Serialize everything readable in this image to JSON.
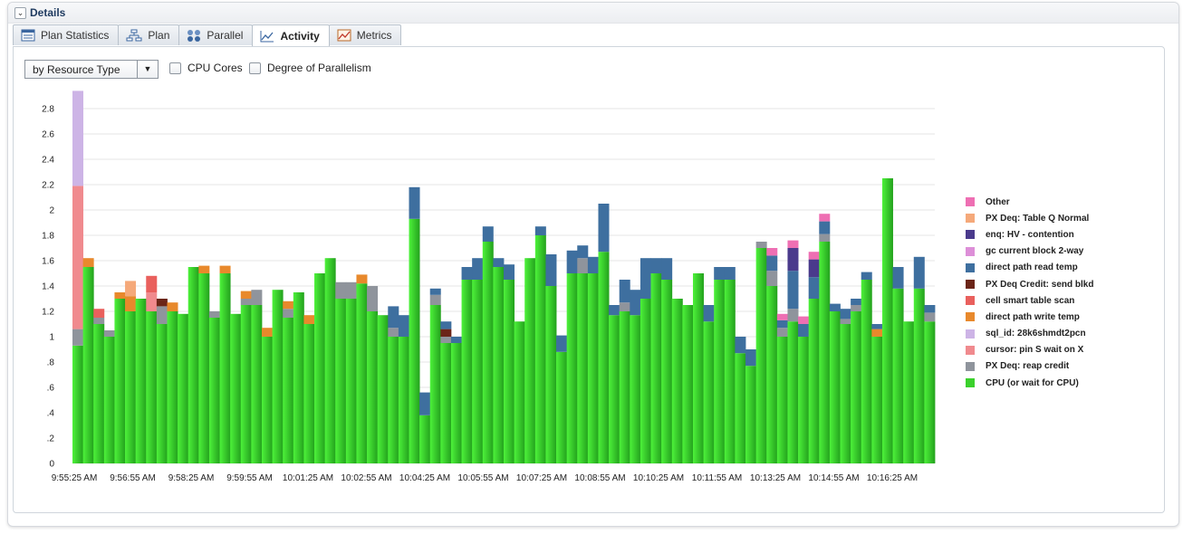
{
  "header": {
    "title": "Details"
  },
  "tabs": [
    {
      "label": "Plan Statistics",
      "icon": "table-icon"
    },
    {
      "label": "Plan",
      "icon": "plan-tree-icon"
    },
    {
      "label": "Parallel",
      "icon": "parallel-servers-icon"
    },
    {
      "label": "Activity",
      "icon": "activity-chart-icon",
      "active": true
    },
    {
      "label": "Metrics",
      "icon": "metrics-chart-icon"
    }
  ],
  "controls": {
    "dimension_select": "by Resource Type",
    "cpu_cores_label": "CPU Cores",
    "dop_label": "Degree of Parallelism"
  },
  "chart_data": {
    "type": "bar",
    "stacked": true,
    "ylim": [
      0,
      3
    ],
    "y_ticks": [
      "0",
      ".2",
      ".4",
      ".6",
      ".8",
      "1",
      "1.2",
      "1.4",
      "1.6",
      "1.8",
      "2",
      "2.2",
      "2.4",
      "2.6",
      "2.8"
    ],
    "x_ticks": [
      "9:55:25 AM",
      "9:56:55 AM",
      "9:58:25 AM",
      "9:59:55 AM",
      "10:01:25 AM",
      "10:02:55 AM",
      "10:04:25 AM",
      "10:05:55 AM",
      "10:07:25 AM",
      "10:08:55 AM",
      "10:10:25 AM",
      "10:11:55 AM",
      "10:13:25 AM",
      "10:14:55 AM",
      "10:16:25 AM"
    ],
    "grid": true,
    "legend_position": "right",
    "series": [
      {
        "name": "CPU (or wait for CPU)",
        "color": "#3bd12c",
        "values": [
          0.93,
          1.55,
          1.1,
          1.0,
          1.3,
          1.2,
          1.3,
          1.2,
          1.1,
          1.2,
          1.18,
          1.55,
          1.5,
          1.15,
          1.5,
          1.18,
          1.25,
          1.25,
          1.0,
          1.37,
          1.15,
          1.35,
          1.1,
          1.5,
          1.62,
          1.3,
          1.3,
          1.42,
          1.2,
          1.17,
          1.0,
          1.0,
          1.93,
          0.38,
          1.25,
          0.95,
          0.95,
          1.45,
          1.45,
          1.75,
          1.55,
          1.45,
          1.12,
          1.62,
          1.8,
          1.4,
          0.88,
          1.5,
          1.5,
          1.5,
          1.67,
          1.17,
          1.2,
          1.17,
          1.3,
          1.5,
          1.45,
          1.3,
          1.25,
          1.5,
          1.12,
          1.45,
          1.45,
          0.87,
          0.77,
          1.7,
          1.4,
          1.0,
          1.12,
          1.0,
          1.3,
          1.75,
          1.2,
          1.1,
          1.2,
          1.45,
          1.0,
          2.25,
          1.38,
          1.12,
          1.38,
          1.12
        ]
      },
      {
        "name": "PX Deq: reap credit",
        "color": "#8f949c",
        "values": [
          0.13,
          0,
          0.05,
          0.05,
          0,
          0,
          0,
          0,
          0.14,
          0,
          0,
          0,
          0,
          0.05,
          0,
          0,
          0.05,
          0.12,
          0,
          0,
          0.07,
          0,
          0,
          0,
          0,
          0.13,
          0.13,
          0,
          0.2,
          0,
          0.07,
          0,
          0,
          0,
          0.08,
          0.05,
          0,
          0,
          0,
          0,
          0,
          0,
          0,
          0,
          0,
          0,
          0,
          0,
          0.12,
          0,
          0,
          0,
          0.07,
          0,
          0,
          0,
          0,
          0,
          0,
          0,
          0,
          0,
          0,
          0,
          0,
          0.05,
          0.12,
          0.07,
          0.1,
          0,
          0,
          0.06,
          0,
          0.04,
          0.05,
          0,
          0,
          0,
          0,
          0,
          0,
          0.07
        ]
      },
      {
        "name": "cursor: pin S wait on X",
        "color": "#f08a8e",
        "values": [
          1.13,
          0,
          0,
          0,
          0,
          0,
          0,
          0.15,
          0,
          0,
          0,
          0,
          0,
          0,
          0,
          0,
          0,
          0,
          0,
          0,
          0,
          0,
          0,
          0,
          0,
          0,
          0,
          0,
          0,
          0,
          0,
          0,
          0,
          0,
          0,
          0,
          0,
          0,
          0,
          0,
          0,
          0,
          0,
          0,
          0,
          0,
          0,
          0,
          0,
          0,
          0,
          0,
          0,
          0,
          0,
          0,
          0,
          0,
          0,
          0,
          0,
          0,
          0,
          0,
          0,
          0,
          0,
          0,
          0,
          0,
          0,
          0,
          0,
          0,
          0,
          0,
          0,
          0,
          0,
          0,
          0,
          0
        ]
      },
      {
        "name": "sql_id: 28k6shmdt2pcn",
        "color": "#cdb4e6",
        "values": [
          0.75,
          0,
          0,
          0,
          0,
          0,
          0,
          0,
          0,
          0,
          0,
          0,
          0,
          0,
          0,
          0,
          0,
          0,
          0,
          0,
          0,
          0,
          0,
          0,
          0,
          0,
          0,
          0,
          0,
          0,
          0,
          0,
          0,
          0,
          0,
          0,
          0,
          0,
          0,
          0,
          0,
          0,
          0,
          0,
          0,
          0,
          0,
          0,
          0,
          0,
          0,
          0,
          0,
          0,
          0,
          0,
          0,
          0,
          0,
          0,
          0,
          0,
          0,
          0,
          0,
          0,
          0,
          0,
          0,
          0,
          0,
          0,
          0,
          0,
          0,
          0,
          0,
          0,
          0,
          0,
          0,
          0
        ]
      },
      {
        "name": "direct path write temp",
        "color": "#e8892c",
        "values": [
          0,
          0.07,
          0,
          0,
          0.05,
          0.12,
          0,
          0,
          0,
          0.07,
          0,
          0,
          0.06,
          0,
          0.06,
          0,
          0.06,
          0,
          0.07,
          0,
          0.06,
          0,
          0.07,
          0,
          0,
          0,
          0,
          0.07,
          0,
          0,
          0,
          0,
          0,
          0,
          0,
          0,
          0,
          0,
          0,
          0,
          0,
          0,
          0,
          0,
          0,
          0,
          0,
          0,
          0,
          0,
          0,
          0,
          0,
          0,
          0,
          0,
          0,
          0,
          0,
          0,
          0,
          0,
          0,
          0,
          0,
          0,
          0,
          0,
          0,
          0,
          0,
          0,
          0,
          0,
          0,
          0,
          0.06,
          0,
          0,
          0,
          0,
          0
        ]
      },
      {
        "name": "cell smart table scan",
        "color": "#e9605d",
        "values": [
          0,
          0,
          0.07,
          0,
          0,
          0,
          0,
          0.13,
          0,
          0,
          0,
          0,
          0,
          0,
          0,
          0,
          0,
          0,
          0,
          0,
          0,
          0,
          0,
          0,
          0,
          0,
          0,
          0,
          0,
          0,
          0,
          0,
          0,
          0,
          0,
          0,
          0,
          0,
          0,
          0,
          0,
          0,
          0,
          0,
          0,
          0,
          0,
          0,
          0,
          0,
          0,
          0,
          0,
          0,
          0,
          0,
          0,
          0,
          0,
          0,
          0,
          0,
          0,
          0,
          0,
          0,
          0,
          0,
          0,
          0,
          0,
          0,
          0,
          0,
          0,
          0,
          0,
          0,
          0,
          0,
          0,
          0
        ]
      },
      {
        "name": "PX Deq Credit: send blkd",
        "color": "#6b2518",
        "values": [
          0,
          0,
          0,
          0,
          0,
          0,
          0,
          0,
          0.06,
          0,
          0,
          0,
          0,
          0,
          0,
          0,
          0,
          0,
          0,
          0,
          0,
          0,
          0,
          0,
          0,
          0,
          0,
          0,
          0,
          0,
          0,
          0,
          0,
          0,
          0,
          0.06,
          0,
          0,
          0,
          0,
          0,
          0,
          0,
          0,
          0,
          0,
          0,
          0,
          0,
          0,
          0,
          0,
          0,
          0,
          0,
          0,
          0,
          0,
          0,
          0,
          0,
          0,
          0,
          0,
          0,
          0,
          0,
          0,
          0,
          0,
          0,
          0,
          0,
          0,
          0,
          0,
          0,
          0,
          0,
          0,
          0,
          0
        ]
      },
      {
        "name": "direct path read temp",
        "color": "#3e6f9f",
        "values": [
          0,
          0,
          0,
          0,
          0,
          0,
          0,
          0,
          0,
          0,
          0,
          0,
          0,
          0,
          0,
          0,
          0,
          0,
          0,
          0,
          0,
          0,
          0,
          0,
          0,
          0,
          0,
          0,
          0,
          0,
          0.17,
          0.17,
          0.25,
          0.18,
          0.05,
          0.06,
          0.05,
          0.1,
          0.17,
          0.12,
          0.07,
          0.12,
          0,
          0,
          0.07,
          0.25,
          0.13,
          0.18,
          0.1,
          0.13,
          0.38,
          0.08,
          0.18,
          0.2,
          0.32,
          0.12,
          0.17,
          0,
          0,
          0,
          0.13,
          0.1,
          0.1,
          0.13,
          0.13,
          0,
          0.12,
          0.06,
          0.3,
          0.1,
          0.17,
          0.1,
          0.06,
          0.08,
          0.05,
          0.06,
          0.04,
          0,
          0.17,
          0,
          0.25,
          0.06
        ]
      },
      {
        "name": "gc current block 2-way",
        "color": "#dd8fd8",
        "values": [
          0,
          0,
          0,
          0,
          0,
          0,
          0,
          0,
          0,
          0,
          0,
          0,
          0,
          0,
          0,
          0,
          0,
          0,
          0,
          0,
          0,
          0,
          0,
          0,
          0,
          0,
          0,
          0,
          0,
          0,
          0,
          0,
          0,
          0,
          0,
          0,
          0,
          0,
          0,
          0,
          0,
          0,
          0,
          0,
          0,
          0,
          0,
          0,
          0,
          0,
          0,
          0,
          0,
          0,
          0,
          0,
          0,
          0,
          0,
          0,
          0,
          0,
          0,
          0,
          0,
          0,
          0,
          0,
          0,
          0,
          0,
          0,
          0,
          0,
          0,
          0,
          0,
          0,
          0,
          0,
          0,
          0
        ]
      },
      {
        "name": "enq: HV - contention",
        "color": "#4a3a8c",
        "values": [
          0,
          0,
          0,
          0,
          0,
          0,
          0,
          0,
          0,
          0,
          0,
          0,
          0,
          0,
          0,
          0,
          0,
          0,
          0,
          0,
          0,
          0,
          0,
          0,
          0,
          0,
          0,
          0,
          0,
          0,
          0,
          0,
          0,
          0,
          0,
          0,
          0,
          0,
          0,
          0,
          0,
          0,
          0,
          0,
          0,
          0,
          0,
          0,
          0,
          0,
          0,
          0,
          0,
          0,
          0,
          0,
          0,
          0,
          0,
          0,
          0,
          0,
          0,
          0,
          0,
          0,
          0,
          0,
          0.18,
          0,
          0.14,
          0,
          0,
          0,
          0,
          0,
          0,
          0,
          0,
          0,
          0,
          0
        ]
      },
      {
        "name": "PX Deq: Table Q Normal",
        "color": "#f5a97a",
        "values": [
          0,
          0,
          0,
          0,
          0,
          0.12,
          0,
          0,
          0,
          0,
          0,
          0,
          0,
          0,
          0,
          0,
          0,
          0,
          0,
          0,
          0,
          0,
          0,
          0,
          0,
          0,
          0,
          0,
          0,
          0,
          0,
          0,
          0,
          0,
          0,
          0,
          0,
          0,
          0,
          0,
          0,
          0,
          0,
          0,
          0,
          0,
          0,
          0,
          0,
          0,
          0,
          0,
          0,
          0,
          0,
          0,
          0,
          0,
          0,
          0,
          0,
          0,
          0,
          0,
          0,
          0,
          0,
          0,
          0,
          0,
          0,
          0,
          0,
          0,
          0,
          0,
          0,
          0,
          0,
          0,
          0,
          0
        ]
      },
      {
        "name": "Other",
        "color": "#ee6fb3",
        "values": [
          0,
          0,
          0,
          0,
          0,
          0,
          0,
          0,
          0,
          0,
          0,
          0,
          0,
          0,
          0,
          0,
          0,
          0,
          0,
          0,
          0,
          0,
          0,
          0,
          0,
          0,
          0,
          0,
          0,
          0,
          0,
          0,
          0,
          0,
          0,
          0,
          0,
          0,
          0,
          0,
          0,
          0,
          0,
          0,
          0,
          0,
          0,
          0,
          0,
          0,
          0,
          0,
          0,
          0,
          0,
          0,
          0,
          0,
          0,
          0,
          0,
          0,
          0,
          0,
          0,
          0,
          0.06,
          0.05,
          0.06,
          0.06,
          0.06,
          0.06,
          0,
          0,
          0,
          0,
          0,
          0,
          0,
          0,
          0,
          0
        ]
      }
    ]
  }
}
